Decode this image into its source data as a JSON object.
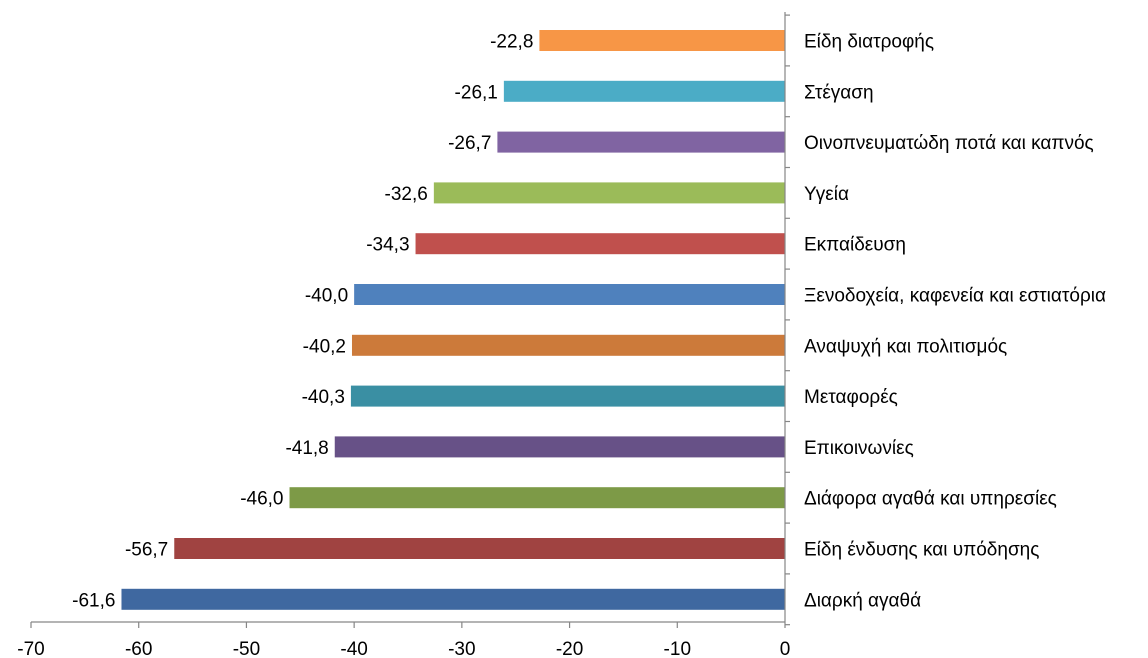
{
  "chart_data": {
    "type": "bar",
    "orientation": "horizontal",
    "title": "",
    "xlabel": "",
    "ylabel": "",
    "xlim": [
      -70,
      0
    ],
    "xticks": [
      -70,
      -60,
      -50,
      -40,
      -30,
      -20,
      -10,
      0
    ],
    "xtick_labels": [
      "-70",
      "-60",
      "-50",
      "-40",
      "-30",
      "-20",
      "-10",
      "0"
    ],
    "grid": false,
    "legend": "none",
    "axis_color": "#868686",
    "categories": [
      "Είδη διατροφής",
      "Στέγαση",
      "Οινοπνευματώδη ποτά και καπνός",
      "Υγεία",
      "Εκπαίδευση",
      "Ξενοδοχεία, καφενεία και εστιατόρια",
      "Αναψυχή και πολιτισμός",
      "Μεταφορές",
      "Επικοινωνίες",
      "Διάφορα αγαθά και υπηρεσίες",
      "Είδη ένδυσης και υπόδησης",
      "Διαρκή αγαθά"
    ],
    "values": [
      -22.8,
      -26.1,
      -26.7,
      -32.6,
      -34.3,
      -40.0,
      -40.2,
      -40.3,
      -41.8,
      -46.0,
      -56.7,
      -61.6
    ],
    "value_labels": [
      "-22,8",
      "-26,1",
      "-26,7",
      "-32,6",
      "-34,3",
      "-40,0",
      "-40,2",
      "-40,3",
      "-41,8",
      "-46,0",
      "-56,7",
      "-61,6"
    ],
    "colors": [
      "#F79646",
      "#4BACC6",
      "#8064A2",
      "#9BBB59",
      "#C0504D",
      "#4F81BD",
      "#CC7A3A",
      "#3A8FA3",
      "#675187",
      "#7D9A47",
      "#A04341",
      "#3F68A0"
    ]
  }
}
